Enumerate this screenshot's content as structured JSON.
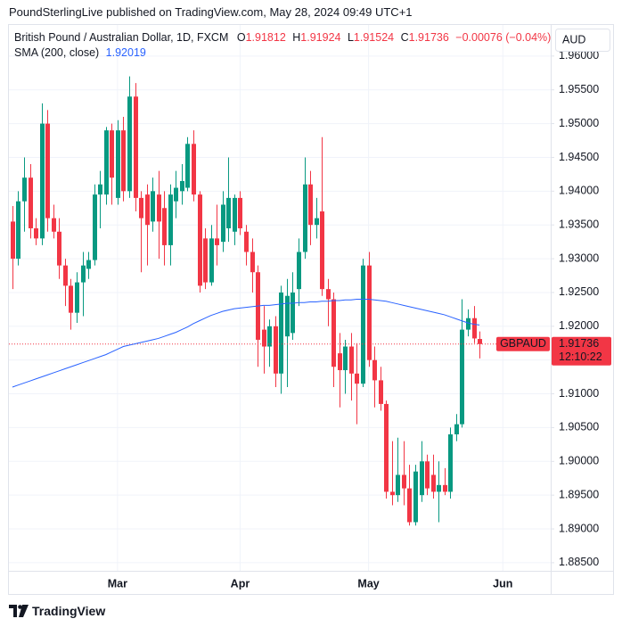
{
  "header": "PoundSterlingLive published on TradingView.com, May 28, 2024 09:49 UTC+1",
  "footer": "TradingView",
  "chart_data": {
    "type": "candlestick",
    "title": "British Pound / Australian Dollar, 1D, FXCM",
    "ohlc_letters": [
      "O",
      "H",
      "L",
      "C"
    ],
    "change_label": "−0.00076 (−0.04%)",
    "currency": "AUD",
    "countdown": "12:10:22",
    "series": [
      {
        "name": "GBPAUD",
        "up_color": "#089981",
        "down_color": "#f23645",
        "open": [
          1.9355,
          1.93,
          1.9385,
          1.942,
          1.9345,
          1.933,
          1.95,
          1.936,
          1.934,
          1.929,
          1.926,
          1.922,
          1.9265,
          1.9285,
          1.9298,
          1.9395,
          1.9395,
          1.949,
          1.939,
          1.949,
          1.94,
          1.954,
          1.939,
          1.9395,
          1.9355,
          1.9395,
          1.9375,
          1.932,
          1.9385,
          1.94,
          1.9405,
          1.947,
          1.9395,
          1.933,
          1.9265,
          1.933,
          1.9325,
          1.9345,
          1.934,
          1.939,
          1.934,
          1.931,
          1.928,
          1.9195,
          1.917,
          1.92,
          1.913,
          1.9185,
          1.919,
          1.9255,
          1.931,
          1.941,
          1.935,
          1.937,
          1.9255,
          1.924,
          1.916,
          1.9135,
          1.917,
          1.913,
          1.9115,
          1.929,
          1.915,
          1.912,
          1.9085,
          1.8955,
          1.895,
          1.898,
          1.896,
          1.891,
          1.895,
          1.9,
          1.898,
          1.8955,
          1.8965,
          1.8955,
          1.904,
          1.9055,
          1.9195,
          1.9212,
          1.91812
        ],
        "high": [
          1.9378,
          1.94,
          1.945,
          1.944,
          1.936,
          1.953,
          1.952,
          1.938,
          1.936,
          1.93,
          1.927,
          1.928,
          1.931,
          1.931,
          1.941,
          1.943,
          1.9495,
          1.95,
          1.9505,
          1.951,
          1.957,
          1.956,
          1.94,
          1.941,
          1.942,
          1.943,
          1.94,
          1.941,
          1.943,
          1.944,
          1.948,
          1.949,
          1.94,
          1.9345,
          1.935,
          1.938,
          1.94,
          1.945,
          1.9395,
          1.94,
          1.935,
          1.933,
          1.929,
          1.923,
          1.921,
          1.9215,
          1.926,
          1.927,
          1.928,
          1.933,
          1.945,
          1.943,
          1.939,
          1.948,
          1.927,
          1.925,
          1.919,
          1.918,
          1.919,
          1.9175,
          1.93,
          1.931,
          1.917,
          1.914,
          1.909,
          1.903,
          1.9035,
          1.903,
          1.8995,
          1.8995,
          1.903,
          1.901,
          1.901,
          1.9,
          1.899,
          1.905,
          1.907,
          1.924,
          1.9225,
          1.923,
          1.91924
        ],
        "low": [
          1.9255,
          1.929,
          1.934,
          1.933,
          1.932,
          1.932,
          1.934,
          1.933,
          1.927,
          1.923,
          1.9195,
          1.9205,
          1.9215,
          1.927,
          1.929,
          1.9345,
          1.938,
          1.938,
          1.938,
          1.9385,
          1.939,
          1.937,
          1.928,
          1.929,
          1.934,
          1.93,
          1.929,
          1.929,
          1.936,
          1.938,
          1.94,
          1.9385,
          1.925,
          1.9255,
          1.926,
          1.929,
          1.931,
          1.9325,
          1.932,
          1.9335,
          1.929,
          1.925,
          1.914,
          1.913,
          1.914,
          1.911,
          1.91,
          1.911,
          1.918,
          1.923,
          1.93,
          1.932,
          1.933,
          1.9245,
          1.92,
          1.911,
          1.908,
          1.91,
          1.909,
          1.9055,
          1.911,
          1.914,
          1.908,
          1.9075,
          1.8945,
          1.8935,
          1.894,
          1.8935,
          1.8905,
          1.8905,
          1.894,
          1.895,
          1.8945,
          1.891,
          1.895,
          1.8945,
          1.903,
          1.905,
          1.9185,
          1.9175,
          1.91524
        ],
        "close": [
          1.93,
          1.9385,
          1.942,
          1.9345,
          1.933,
          1.95,
          1.936,
          1.934,
          1.929,
          1.926,
          1.922,
          1.9265,
          1.929,
          1.9298,
          1.9395,
          1.941,
          1.949,
          1.942,
          1.949,
          1.94,
          1.954,
          1.939,
          1.936,
          1.935,
          1.94,
          1.9355,
          1.932,
          1.9395,
          1.9405,
          1.9415,
          1.947,
          1.9395,
          1.926,
          1.9265,
          1.933,
          1.932,
          1.938,
          1.939,
          1.939,
          1.9345,
          1.931,
          1.928,
          1.918,
          1.917,
          1.92,
          1.913,
          1.925,
          1.9245,
          1.925,
          1.931,
          1.941,
          1.935,
          1.936,
          1.9255,
          1.924,
          1.914,
          1.9135,
          1.917,
          1.913,
          1.9115,
          1.929,
          1.915,
          1.912,
          1.9085,
          1.8955,
          1.895,
          1.898,
          1.896,
          1.891,
          1.8985,
          1.9,
          1.896,
          1.8955,
          1.8965,
          1.8955,
          1.904,
          1.9055,
          1.9195,
          1.9212,
          1.9182,
          1.91736
        ]
      },
      {
        "name": "SMA (200, close)",
        "type": "line",
        "color": "#2962ff",
        "values": [
          1.911,
          1.9113,
          1.9116,
          1.9119,
          1.9122,
          1.9125,
          1.9128,
          1.9131,
          1.9134,
          1.9137,
          1.914,
          1.9143,
          1.9146,
          1.9149,
          1.9152,
          1.9155,
          1.9158,
          1.9162,
          1.9166,
          1.917,
          1.9172,
          1.9174,
          1.9176,
          1.9178,
          1.918,
          1.9182,
          1.9185,
          1.9188,
          1.9191,
          1.9195,
          1.9199,
          1.9204,
          1.9208,
          1.9212,
          1.9216,
          1.9219,
          1.9222,
          1.9224,
          1.9226,
          1.9227,
          1.9228,
          1.9229,
          1.923,
          1.9231,
          1.9231,
          1.9232,
          1.9233,
          1.9234,
          1.9234,
          1.9235,
          1.9235,
          1.9236,
          1.9236,
          1.9237,
          1.9237,
          1.9238,
          1.9238,
          1.9239,
          1.9239,
          1.924,
          1.924,
          1.924,
          1.9239,
          1.9238,
          1.9237,
          1.9235,
          1.9233,
          1.9231,
          1.9229,
          1.9227,
          1.9225,
          1.9223,
          1.9221,
          1.9219,
          1.9217,
          1.9214,
          1.9211,
          1.9208,
          1.9205,
          1.9203,
          1.92019
        ]
      }
    ],
    "xlim": [
      -0.6,
      92.2
    ],
    "xticks": [
      {
        "value": 18,
        "label": "Mar"
      },
      {
        "value": 39,
        "label": "Apr"
      },
      {
        "value": 61,
        "label": "May"
      },
      {
        "value": 84,
        "label": "Jun"
      }
    ],
    "ylim": [
      1.8838,
      1.9646
    ],
    "yticks": [
      {
        "value": 1.885,
        "label": "1.88500"
      },
      {
        "value": 1.89,
        "label": "1.89000"
      },
      {
        "value": 1.895,
        "label": "1.89500"
      },
      {
        "value": 1.9,
        "label": "1.90000"
      },
      {
        "value": 1.905,
        "label": "1.90500"
      },
      {
        "value": 1.91,
        "label": "1.91000"
      },
      {
        "value": 1.915,
        "label": "1.91500"
      },
      {
        "value": 1.92,
        "label": "1.92000"
      },
      {
        "value": 1.925,
        "label": "1.92500"
      },
      {
        "value": 1.93,
        "label": "1.93000"
      },
      {
        "value": 1.935,
        "label": "1.93500"
      },
      {
        "value": 1.94,
        "label": "1.94000"
      },
      {
        "value": 1.945,
        "label": "1.94500"
      },
      {
        "value": 1.95,
        "label": "1.95000"
      },
      {
        "value": 1.955,
        "label": "1.95500"
      },
      {
        "value": 1.96,
        "label": "1.96000"
      }
    ],
    "grid": true
  }
}
